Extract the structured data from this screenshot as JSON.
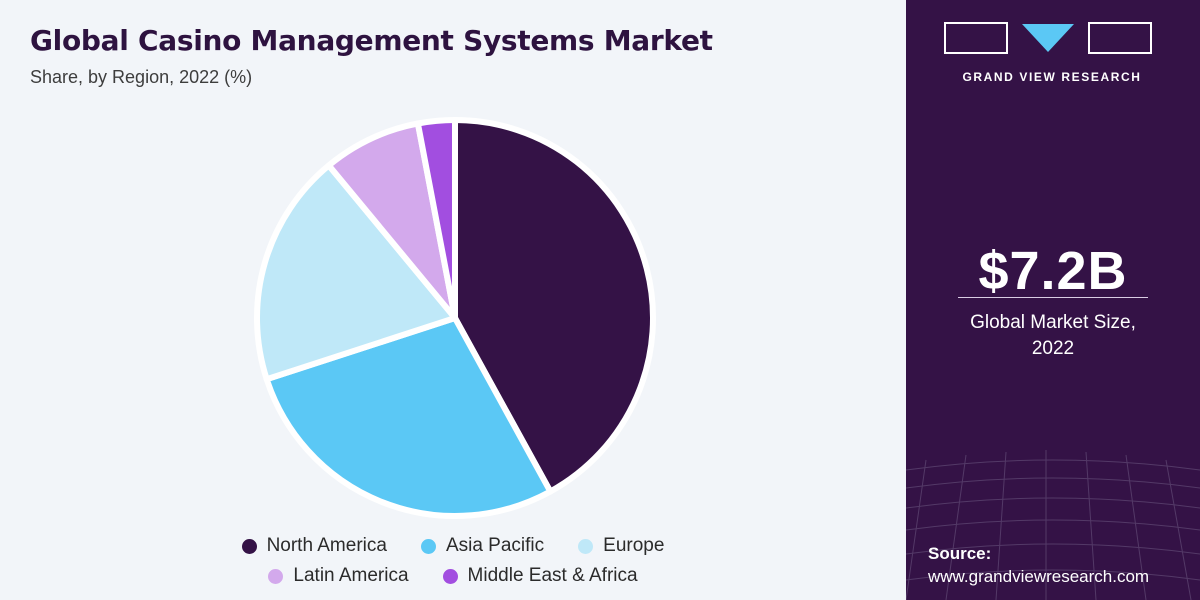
{
  "header": {
    "title": "Global Casino Management Systems Market",
    "subtitle": "Share, by Region, 2022 (%)"
  },
  "chart_data": {
    "type": "pie",
    "title": "Global Casino Management Systems Market",
    "subtitle": "Share, by Region, 2022 (%)",
    "labels": [
      "North America",
      "Asia Pacific",
      "Europe",
      "Latin America",
      "Middle East & Africa"
    ],
    "values": [
      42,
      28,
      19,
      8,
      3
    ],
    "colors": [
      "#341246",
      "#5bc8f5",
      "#bfe8f8",
      "#d3a9ec",
      "#a24ee0"
    ],
    "legend_position": "bottom"
  },
  "sidebar": {
    "brand": "GRAND VIEW RESEARCH",
    "market_value": "$7.2B",
    "market_label_line1": "Global Market Size,",
    "market_label_line2": "2022",
    "source_label": "Source:",
    "source_url": "www.grandviewresearch.com"
  },
  "colors": {
    "sidebar_bg": "#341246",
    "accent": "#5bc8f5",
    "page_bg": "#f2f5f9"
  }
}
